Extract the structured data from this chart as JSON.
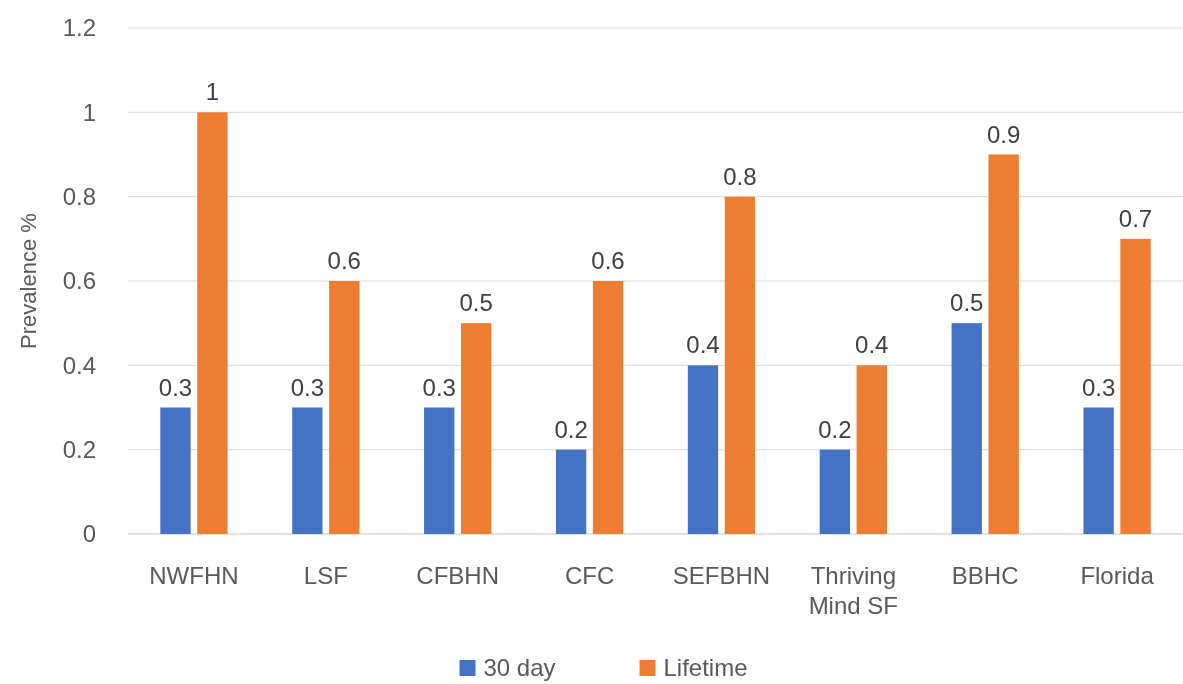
{
  "chart_data": {
    "type": "bar",
    "ylabel": "Prevalence %",
    "categories": [
      "NWFHN",
      "LSF",
      "CFBHN",
      "CFC",
      "SEFBHN",
      "Thriving Mind SF",
      "BBHC",
      "Florida"
    ],
    "series": [
      {
        "name": "30 day",
        "color": "#4472c4",
        "values": [
          0.3,
          0.3,
          0.3,
          0.2,
          0.4,
          0.2,
          0.5,
          0.3
        ]
      },
      {
        "name": "Lifetime",
        "color": "#ed7d31",
        "values": [
          1,
          0.6,
          0.5,
          0.6,
          0.8,
          0.4,
          0.9,
          0.7
        ]
      }
    ],
    "ylim": [
      0,
      1.2
    ],
    "yticks": [
      0,
      0.2,
      0.4,
      0.6,
      0.8,
      1,
      1.2
    ],
    "grid": "y",
    "legend": "bottom",
    "data_labels": true
  }
}
